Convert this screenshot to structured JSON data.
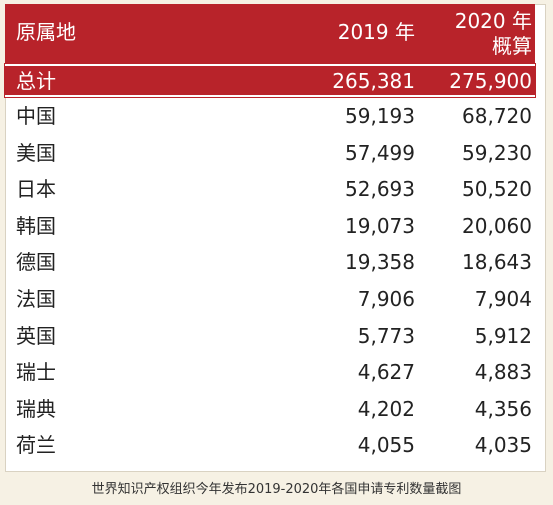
{
  "table": {
    "headers": {
      "origin": "原属地",
      "year2019": "2019 年",
      "year2020_line1": "2020 年",
      "year2020_line2": "概算"
    },
    "total": {
      "name": "总计",
      "y2019": "265,381",
      "y2020": "275,900"
    },
    "rows": [
      {
        "name": "中国",
        "y2019": "59,193",
        "y2020": "68,720"
      },
      {
        "name": "美国",
        "y2019": "57,499",
        "y2020": "59,230"
      },
      {
        "name": "日本",
        "y2019": "52,693",
        "y2020": "50,520"
      },
      {
        "name": "韩国",
        "y2019": "19,073",
        "y2020": "20,060"
      },
      {
        "name": "德国",
        "y2019": "19,358",
        "y2020": "18,643"
      },
      {
        "name": "法国",
        "y2019": "7,906",
        "y2020": "7,904"
      },
      {
        "name": "英国",
        "y2019": "5,773",
        "y2020": "5,912"
      },
      {
        "name": "瑞士",
        "y2019": "4,627",
        "y2020": "4,883"
      },
      {
        "name": "瑞典",
        "y2019": "4,202",
        "y2020": "4,356"
      },
      {
        "name": "荷兰",
        "y2019": "4,055",
        "y2020": "4,035"
      }
    ]
  },
  "caption": "世界知识产权组织今年发布2019-2020年各国申请专利数量截图",
  "colors": {
    "header_bg": "#b8232a",
    "page_bg": "#f6f1e4"
  }
}
